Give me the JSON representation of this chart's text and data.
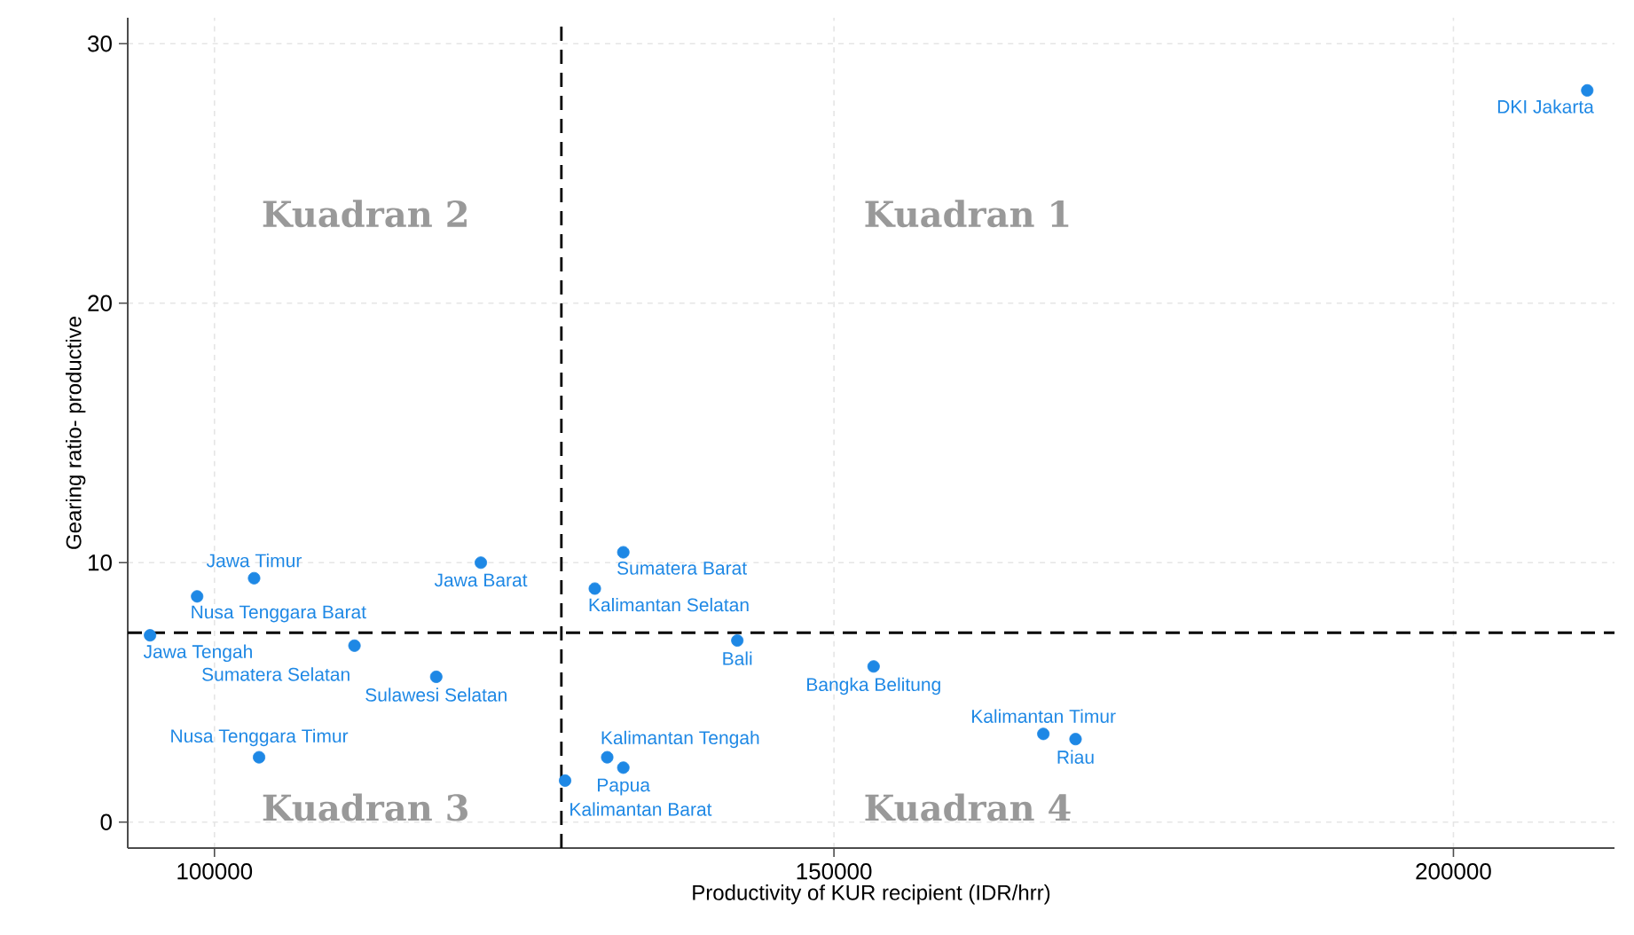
{
  "chart_data": {
    "type": "scatter",
    "xlabel": "Productivity of KUR recipient (IDR/hrr)",
    "ylabel": "Gearing ratio- productive",
    "xlim": [
      93000,
      213000
    ],
    "ylim": [
      -1,
      31
    ],
    "xticks": [
      100000,
      150000,
      200000
    ],
    "yticks": [
      0,
      10,
      20,
      30
    ],
    "grid": true,
    "marker": "circle",
    "series": [
      {
        "name": "DKI Jakarta",
        "color": "#1e88e5",
        "x": [
          210800
        ],
        "values": [
          28.2
        ]
      },
      {
        "name": "Jawa Tengah",
        "color": "#1e88e5",
        "x": [
          94800
        ],
        "values": [
          7.2
        ]
      },
      {
        "name": "Nusa Tenggara Barat",
        "color": "#1e88e5",
        "x": [
          98600
        ],
        "values": [
          8.7
        ]
      },
      {
        "name": "Jawa Timur",
        "color": "#1e88e5",
        "x": [
          103200
        ],
        "values": [
          9.4
        ]
      },
      {
        "name": "Nusa Tenggara Timur",
        "color": "#1e88e5",
        "x": [
          103600
        ],
        "values": [
          2.5
        ]
      },
      {
        "name": "Sumatera Selatan",
        "color": "#1e88e5",
        "x": [
          111300
        ],
        "values": [
          6.8
        ]
      },
      {
        "name": "Sulawesi Selatan",
        "color": "#1e88e5",
        "x": [
          117900
        ],
        "values": [
          5.6
        ]
      },
      {
        "name": "Jawa Barat",
        "color": "#1e88e5",
        "x": [
          121500
        ],
        "values": [
          10.0
        ]
      },
      {
        "name": "Kalimantan Selatan",
        "color": "#1e88e5",
        "x": [
          130700
        ],
        "values": [
          9.0
        ]
      },
      {
        "name": "Sumatera Barat",
        "color": "#1e88e5",
        "x": [
          133000
        ],
        "values": [
          10.4
        ]
      },
      {
        "name": "Kalimantan Barat",
        "color": "#1e88e5",
        "x": [
          128300
        ],
        "values": [
          1.6
        ]
      },
      {
        "name": "Kalimantan Tengah",
        "color": "#1e88e5",
        "x": [
          131700
        ],
        "values": [
          2.5
        ]
      },
      {
        "name": "Papua",
        "color": "#1e88e5",
        "x": [
          133000
        ],
        "values": [
          2.1
        ]
      },
      {
        "name": "Bali",
        "color": "#1e88e5",
        "x": [
          142200
        ],
        "values": [
          7.0
        ]
      },
      {
        "name": "Bangka Belitung",
        "color": "#1e88e5",
        "x": [
          153200
        ],
        "values": [
          6.0
        ]
      },
      {
        "name": "Kalimantan Timur",
        "color": "#1e88e5",
        "x": [
          166900
        ],
        "values": [
          3.4
        ]
      },
      {
        "name": "Riau",
        "color": "#1e88e5",
        "x": [
          169500
        ],
        "values": [
          3.2
        ]
      }
    ],
    "ref_lines": [
      {
        "axis": "x",
        "value": 128000,
        "color": "#000000",
        "line_style": "dashed"
      },
      {
        "axis": "y",
        "value": 7.3,
        "color": "#000000",
        "line_style": "dashed"
      }
    ],
    "annotations": [
      "Kuadran 2",
      "Kuadran 1",
      "Kuadran 3",
      "Kuadran 4"
    ]
  }
}
